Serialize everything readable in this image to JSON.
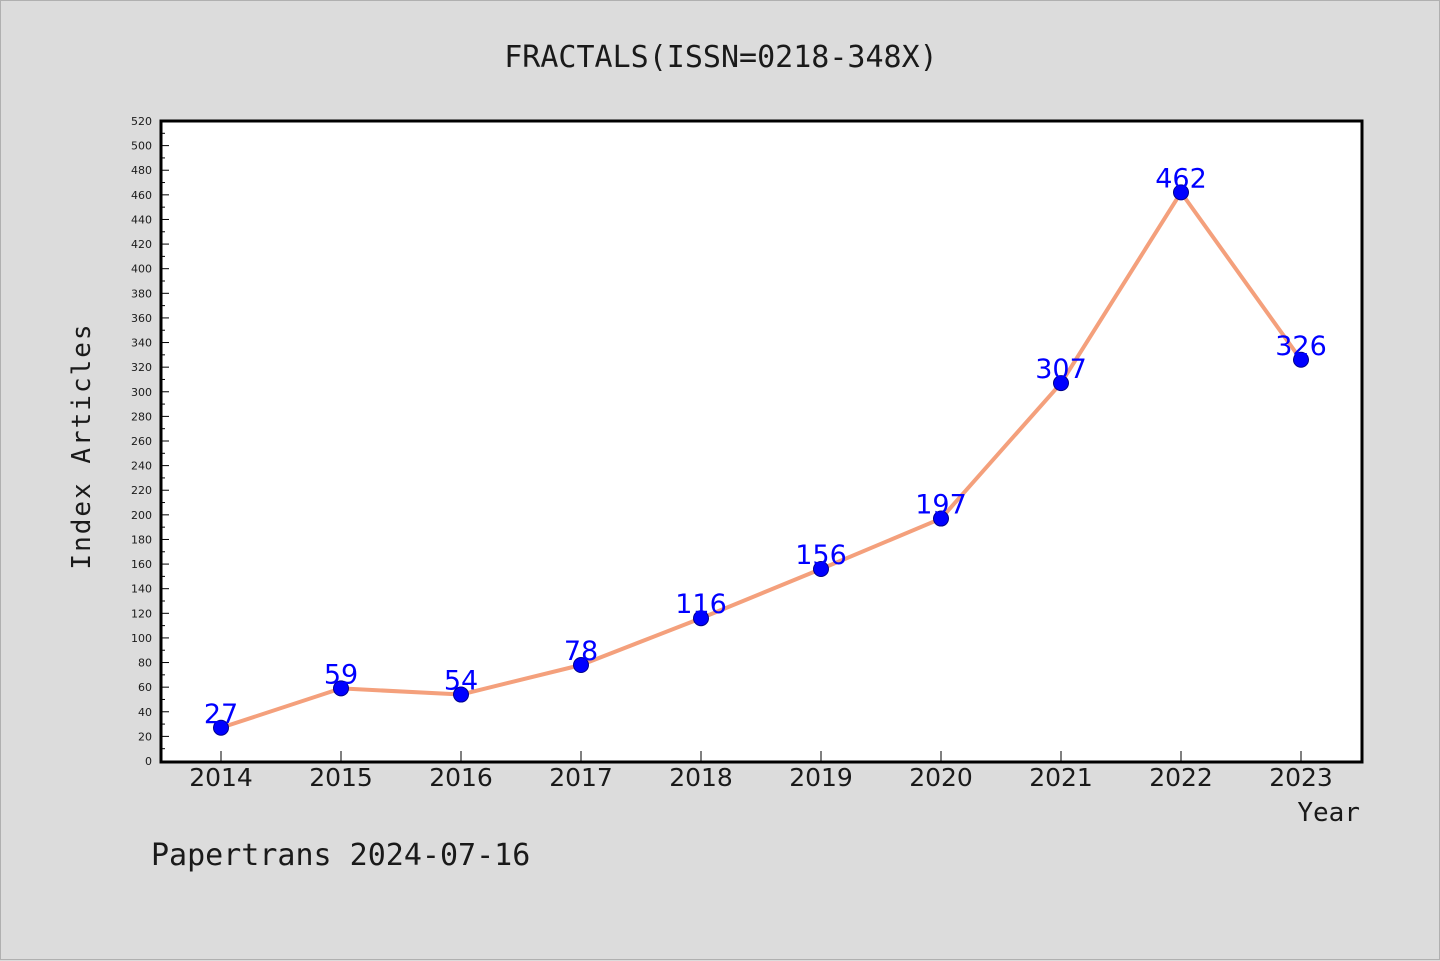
{
  "chart_data": {
    "type": "line",
    "title": "FRACTALS(ISSN=0218-348X)",
    "xlabel": "Year",
    "ylabel": "Index Articles",
    "categories": [
      "2014",
      "2015",
      "2016",
      "2017",
      "2018",
      "2019",
      "2020",
      "2021",
      "2022",
      "2023"
    ],
    "series": [
      {
        "values": [
          27,
          59,
          54,
          78,
          116,
          156,
          197,
          307,
          462,
          326
        ]
      }
    ],
    "data_labels": [
      "27",
      "59",
      "54",
      "78",
      "116",
      "156",
      "197",
      "307",
      "462",
      "326"
    ],
    "ylim": [
      0,
      520
    ],
    "y_ticks": [
      "0",
      "20",
      "40",
      "60",
      "80",
      "100",
      "120",
      "140",
      "160",
      "180",
      "200",
      "220",
      "240",
      "260",
      "280",
      "300",
      "320",
      "340",
      "360",
      "380",
      "400",
      "420",
      "440",
      "460",
      "480",
      "500",
      "520"
    ],
    "grid": false,
    "legend": "none",
    "colors": {
      "background": "#dcdcdc",
      "plot_background": "#ffffff",
      "line": "#f4a07c",
      "marker": "#0000ff",
      "data_label": "#0000ff",
      "text": "#1a1a1a"
    }
  },
  "footer": {
    "credit": "Papertrans 2024-07-16"
  }
}
